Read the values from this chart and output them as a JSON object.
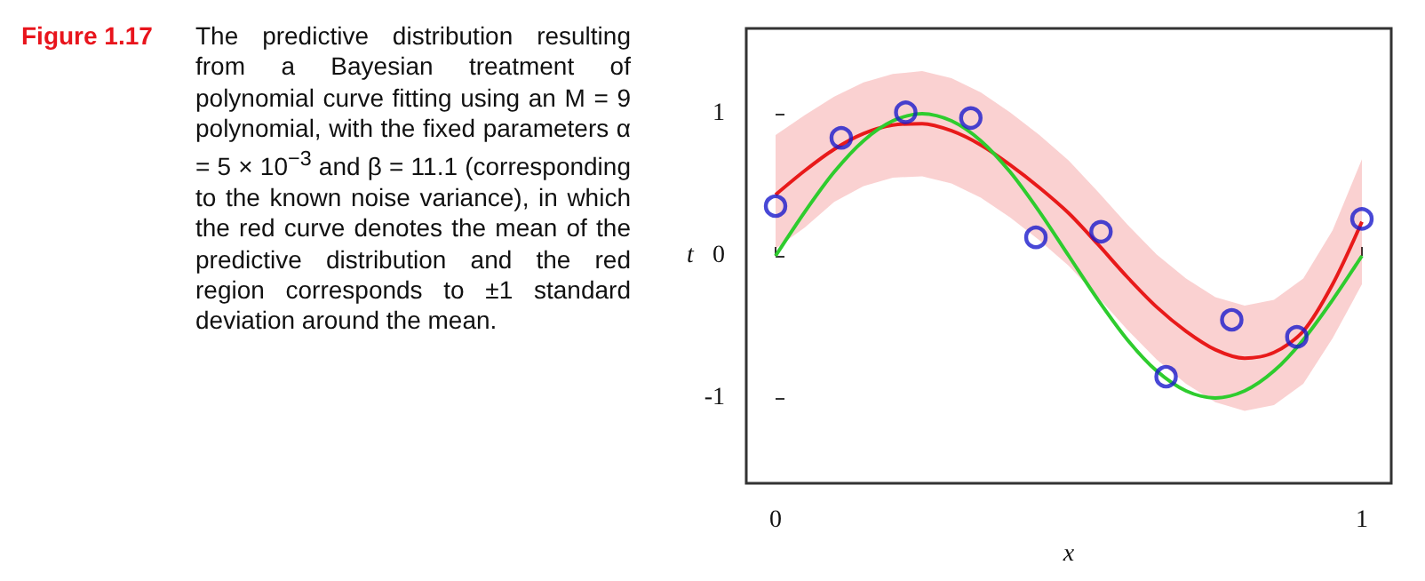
{
  "chart_data": {
    "type": "line",
    "title": "Figure 1.17",
    "annotations": [
      "The predictive distribution resulting from a Bayesian treatment of polynomial curve fitting using an M = 9 polynomial, with the fixed parameters α = 5 × 10$^{−3}$ and β = 11.1 (corresponding to the known noise variance), in which the red curve denotes the mean of the predictive distribution and the red region corresponds to ±1 standard deviation around the mean."
    ],
    "xlabel": "x",
    "ylabel": "t",
    "xlim": [
      -0.05,
      1.05
    ],
    "ylim": [
      -1.6,
      1.6
    ],
    "xticks": [
      0,
      1
    ],
    "yticks": [
      -1,
      0,
      1
    ],
    "grid": false,
    "series": [
      {
        "color": "#e81a1a",
        "marker": "none",
        "x": [
          0,
          0.05,
          0.1,
          0.15,
          0.2,
          0.25,
          0.3,
          0.35,
          0.4,
          0.45,
          0.5,
          0.55,
          0.6,
          0.65,
          0.7,
          0.75,
          0.8,
          0.85,
          0.9,
          0.95,
          1
        ],
        "values": [
          0.43,
          0.6,
          0.75,
          0.86,
          0.92,
          0.93,
          0.88,
          0.78,
          0.64,
          0.48,
          0.3,
          0.08,
          -0.15,
          -0.36,
          -0.53,
          -0.66,
          -0.72,
          -0.68,
          -0.53,
          -0.2,
          0.24
        ],
        "upper": [
          0.85,
          0.99,
          1.12,
          1.22,
          1.28,
          1.3,
          1.25,
          1.15,
          1.01,
          0.85,
          0.67,
          0.45,
          0.22,
          0.01,
          -0.16,
          -0.29,
          -0.35,
          -0.31,
          -0.16,
          0.18,
          0.68
        ],
        "lower": [
          0.05,
          0.2,
          0.38,
          0.49,
          0.55,
          0.56,
          0.51,
          0.41,
          0.27,
          0.11,
          -0.07,
          -0.29,
          -0.52,
          -0.73,
          -0.9,
          -1.03,
          -1.09,
          -1.05,
          -0.9,
          -0.58,
          -0.2
        ]
      },
      {
        "color": "#2ecc2e",
        "marker": "none",
        "x": [
          0,
          0.05,
          0.1,
          0.15,
          0.2,
          0.25,
          0.3,
          0.35,
          0.4,
          0.45,
          0.5,
          0.55,
          0.6,
          0.65,
          0.7,
          0.75,
          0.8,
          0.85,
          0.9,
          0.95,
          1
        ],
        "values": [
          0,
          0.31,
          0.59,
          0.81,
          0.95,
          1,
          0.95,
          0.81,
          0.59,
          0.31,
          0,
          -0.31,
          -0.59,
          -0.81,
          -0.95,
          -1,
          -0.95,
          -0.81,
          -0.59,
          -0.31,
          0
        ]
      },
      {
        "type": "scatter",
        "color": "#1a1acc",
        "marker": "circle",
        "x": [
          0,
          0.112,
          0.222,
          0.333,
          0.444,
          0.555,
          0.666,
          0.778,
          0.889,
          1
        ],
        "values": [
          0.35,
          0.83,
          1.01,
          0.97,
          0.13,
          0.17,
          -0.85,
          -0.45,
          -0.57,
          0.26
        ]
      }
    ]
  }
}
